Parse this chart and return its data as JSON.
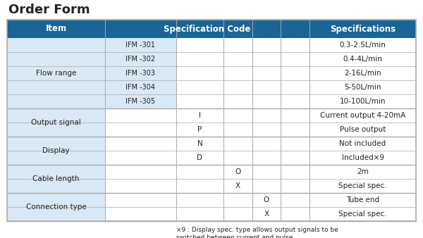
{
  "title": "Order Form",
  "header_bg": "#1a6496",
  "header_text_color": "#ffffff",
  "row_bg_item": "#d9e8f5",
  "row_bg_white": "#ffffff",
  "border_color": "#aaaaaa",
  "text_color": "#222222",
  "fig_bg": "#ffffff",
  "footnote_line1": "×9 : Display spec. type allows output signals to be",
  "footnote_line2": "switched between current and pulse.",
  "row_groups": [
    {
      "item": "Flow range",
      "rows": [
        {
          "c1": "IFM -301",
          "c2": "",
          "c3": "",
          "c4": "",
          "spec": "0.3-2.5L/min"
        },
        {
          "c1": "IFM -302",
          "c2": "",
          "c3": "",
          "c4": "",
          "spec": "0.4-4L/min"
        },
        {
          "c1": "IFM -303",
          "c2": "",
          "c3": "",
          "c4": "",
          "spec": "2-16L/min"
        },
        {
          "c1": "IFM -304",
          "c2": "",
          "c3": "",
          "c4": "",
          "spec": "5-50L/min"
        },
        {
          "c1": "IFM -305",
          "c2": "",
          "c3": "",
          "c4": "",
          "spec": "10-100L/min"
        }
      ]
    },
    {
      "item": "Output signal",
      "rows": [
        {
          "c1": "",
          "c2": "I",
          "c3": "",
          "c4": "",
          "spec": "Current output 4-20mA"
        },
        {
          "c1": "",
          "c2": "P",
          "c3": "",
          "c4": "",
          "spec": "Pulse output"
        }
      ]
    },
    {
      "item": "Display",
      "rows": [
        {
          "c1": "",
          "c2": "N",
          "c3": "",
          "c4": "",
          "spec": "Not included"
        },
        {
          "c1": "",
          "c2": "D",
          "c3": "",
          "c4": "",
          "spec": "Included×9"
        }
      ]
    },
    {
      "item": "Cable length",
      "rows": [
        {
          "c1": "",
          "c2": "",
          "c3": "O",
          "c4": "",
          "spec": "2m"
        },
        {
          "c1": "",
          "c2": "",
          "c3": "X",
          "c4": "",
          "spec": "Special spec."
        }
      ]
    },
    {
      "item": "Connection type",
      "rows": [
        {
          "c1": "",
          "c2": "",
          "c3": "",
          "c4": "O",
          "spec": "Tube end"
        },
        {
          "c1": "",
          "c2": "",
          "c3": "",
          "c4": "X",
          "spec": "Special spec."
        }
      ]
    }
  ]
}
